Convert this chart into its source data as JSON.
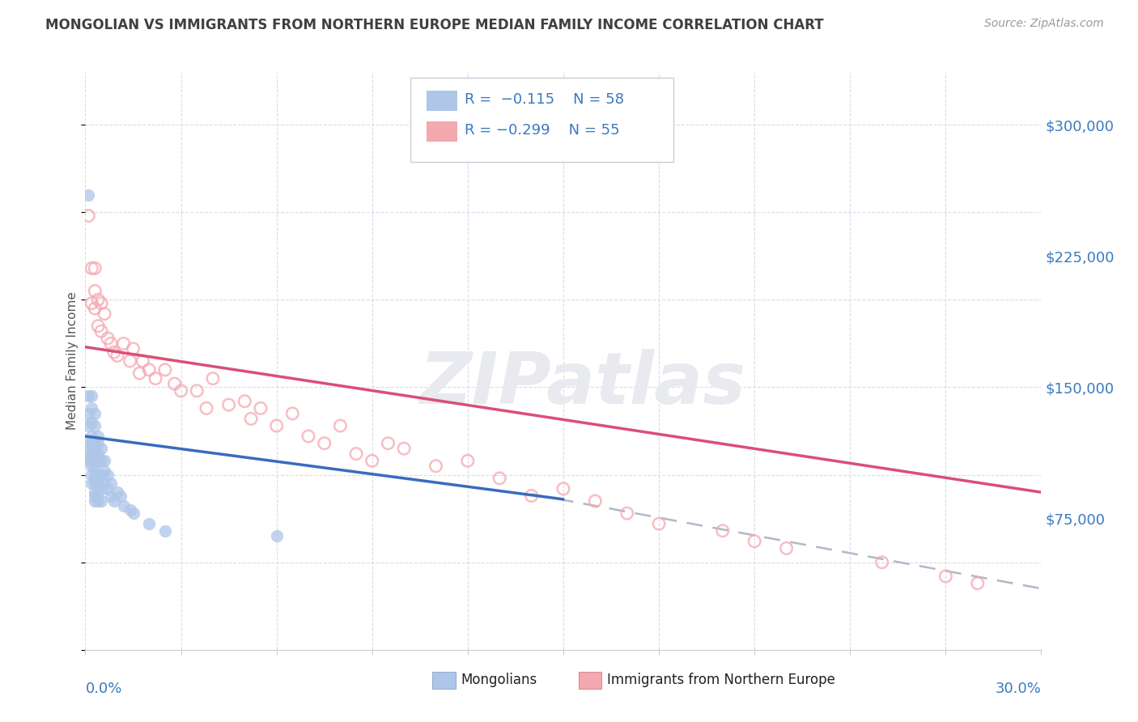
{
  "title": "MONGOLIAN VS IMMIGRANTS FROM NORTHERN EUROPE MEDIAN FAMILY INCOME CORRELATION CHART",
  "source": "Source: ZipAtlas.com",
  "ylabel": "Median Family Income",
  "ytick_values": [
    0,
    75000,
    150000,
    225000,
    300000
  ],
  "ytick_labels": [
    "",
    "$75,000",
    "$150,000",
    "$225,000",
    "$300,000"
  ],
  "xlim": [
    0.0,
    0.3
  ],
  "ylim": [
    0,
    330000
  ],
  "blue_color": "#aec6e8",
  "pink_color": "#f4a8b0",
  "trend_blue_color": "#3a6bbf",
  "trend_pink_color": "#d94f7a",
  "trend_dash_color": "#b0b8c8",
  "label_color": "#3a7abf",
  "title_color": "#404040",
  "source_color": "#999999",
  "grid_color": "#d8dce8",
  "blue_x": [
    0.001,
    0.001,
    0.001,
    0.001,
    0.001,
    0.001,
    0.001,
    0.002,
    0.002,
    0.002,
    0.002,
    0.002,
    0.002,
    0.002,
    0.002,
    0.002,
    0.002,
    0.003,
    0.003,
    0.003,
    0.003,
    0.003,
    0.003,
    0.003,
    0.003,
    0.003,
    0.003,
    0.003,
    0.003,
    0.004,
    0.004,
    0.004,
    0.004,
    0.004,
    0.004,
    0.004,
    0.004,
    0.005,
    0.005,
    0.005,
    0.005,
    0.005,
    0.006,
    0.006,
    0.006,
    0.007,
    0.007,
    0.008,
    0.008,
    0.009,
    0.01,
    0.011,
    0.012,
    0.014,
    0.015,
    0.02,
    0.025,
    0.06
  ],
  "blue_y": [
    260000,
    145000,
    135000,
    128000,
    118000,
    112000,
    108000,
    145000,
    138000,
    130000,
    122000,
    118000,
    112000,
    108000,
    105000,
    100000,
    95000,
    135000,
    128000,
    120000,
    115000,
    112000,
    108000,
    105000,
    100000,
    95000,
    90000,
    88000,
    85000,
    122000,
    118000,
    112000,
    108000,
    100000,
    95000,
    90000,
    85000,
    115000,
    108000,
    100000,
    92000,
    85000,
    108000,
    102000,
    95000,
    100000,
    92000,
    95000,
    88000,
    85000,
    90000,
    88000,
    82000,
    80000,
    78000,
    72000,
    68000,
    65000
  ],
  "pink_x": [
    0.001,
    0.002,
    0.002,
    0.003,
    0.003,
    0.003,
    0.004,
    0.004,
    0.005,
    0.005,
    0.006,
    0.007,
    0.008,
    0.009,
    0.01,
    0.012,
    0.014,
    0.015,
    0.017,
    0.018,
    0.02,
    0.022,
    0.025,
    0.028,
    0.03,
    0.035,
    0.038,
    0.04,
    0.045,
    0.05,
    0.052,
    0.055,
    0.06,
    0.065,
    0.07,
    0.075,
    0.08,
    0.085,
    0.09,
    0.095,
    0.1,
    0.11,
    0.12,
    0.13,
    0.14,
    0.15,
    0.16,
    0.17,
    0.18,
    0.2,
    0.21,
    0.22,
    0.25,
    0.27,
    0.28
  ],
  "pink_y": [
    248000,
    218000,
    198000,
    218000,
    205000,
    195000,
    200000,
    185000,
    198000,
    182000,
    192000,
    178000,
    175000,
    170000,
    168000,
    175000,
    165000,
    172000,
    158000,
    165000,
    160000,
    155000,
    160000,
    152000,
    148000,
    148000,
    138000,
    155000,
    140000,
    142000,
    132000,
    138000,
    128000,
    135000,
    122000,
    118000,
    128000,
    112000,
    108000,
    118000,
    115000,
    105000,
    108000,
    98000,
    88000,
    92000,
    85000,
    78000,
    72000,
    68000,
    62000,
    58000,
    50000,
    42000,
    38000
  ],
  "blue_trend_x0": 0.0,
  "blue_trend_x1": 0.15,
  "blue_trend_y0": 122000,
  "blue_trend_y1": 86000,
  "pink_trend_x0": 0.0,
  "pink_trend_x1": 0.3,
  "pink_trend_y0": 173000,
  "pink_trend_y1": 90000,
  "dash_trend_x0": 0.14,
  "dash_trend_x1": 0.3,
  "dash_trend_y0": 89000,
  "dash_trend_y1": 35000
}
